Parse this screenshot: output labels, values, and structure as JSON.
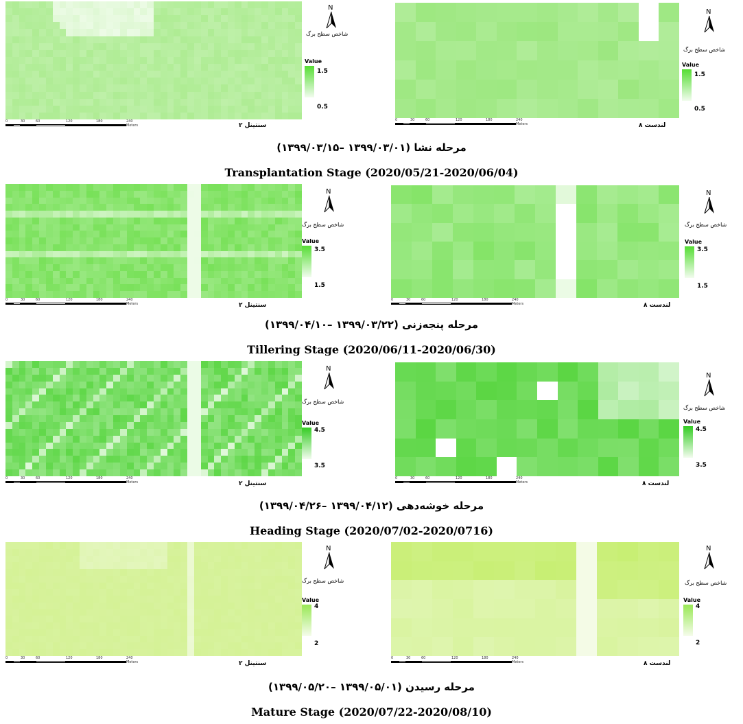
{
  "legend": {
    "title": "شاخص سطح برگ",
    "value_label": "Value",
    "north_label": "N"
  },
  "scale_bar": {
    "ticks": [
      "0",
      "30",
      "60",
      "120",
      "180",
      "240"
    ],
    "unit": "Meters"
  },
  "sensors": {
    "sentinel": "سنتینل ۲",
    "landsat": "لندست ۸"
  },
  "stages": [
    {
      "caption_fa": "مرحله نشا (۱۳۹۹/۰۳/۰۱ –۱۳۹۹/۰۳/۱۵)",
      "caption_en": "Transplantation Stage (2020/05/21-2020/06/04)",
      "legend_high": "1.5",
      "legend_low": "0.5",
      "color_high": "#55dd33",
      "color_low": "#f2fcee"
    },
    {
      "caption_fa": "مرحله پنجه‌زنی (۱۳۹۹/۰۳/۲۲ –۱۳۹۹/۰۴/۱۰)",
      "caption_en": "Tillering Stage (2020/06/11-2020/06/30)",
      "legend_high": "3.5",
      "legend_low": "1.5",
      "color_high": "#55dd33",
      "color_low": "#f2fcee"
    },
    {
      "caption_fa": "مرحله خوشه‌دهی (۱۳۹۹/۰۴/۱۲ –۱۳۹۹/۰۴/۲۶)",
      "caption_en": "Heading Stage (2020/07/02-2020/0716)",
      "legend_high": "4.5",
      "legend_low": "3.5",
      "color_high": "#33cc22",
      "color_low": "#f2fcee"
    },
    {
      "caption_fa": "مرحله رسیدن (۱۳۹۹/۰۵/۰۱ –۱۳۹۹/۰۵/۲۰)",
      "caption_en": "Mature Stage (2020/07/22-2020/08/10)",
      "legend_high": "4",
      "legend_low": "2",
      "color_high": "#99e855",
      "color_low": "#f6fcec"
    }
  ]
}
